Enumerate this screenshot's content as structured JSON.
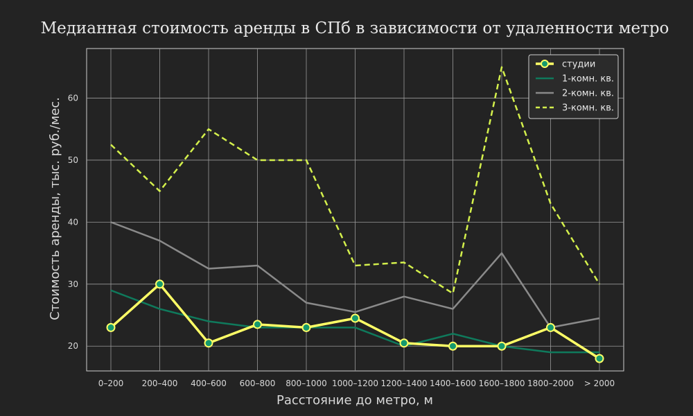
{
  "chart_data": {
    "type": "line",
    "title": "Медианная стоимость аренды в СПб в зависимости от удаленности метро",
    "xlabel": "Расстояние до метро, м",
    "ylabel": "Стоимость аренды, тыс. руб./мес.",
    "categories": [
      "0–200",
      "200–400",
      "400–600",
      "600–800",
      "800–1000",
      "1000–1200",
      "1200–1400",
      "1400–1600",
      "1600–1800",
      "1800–2000",
      "> 2000"
    ],
    "ylim": [
      16,
      68
    ],
    "yticks": [
      20,
      30,
      40,
      50,
      60
    ],
    "grid": true,
    "legend_position": "top-right",
    "series": [
      {
        "name": "студии",
        "color": "#ffff66",
        "style": "solid-markers",
        "values": [
          23,
          30,
          20.5,
          23.5,
          23,
          24.5,
          20.5,
          20,
          20,
          23,
          18
        ]
      },
      {
        "name": "1-комн. кв.",
        "color": "#0f7a5c",
        "style": "solid",
        "values": [
          29,
          26,
          24,
          23,
          23,
          23,
          20,
          22,
          20,
          19,
          19
        ]
      },
      {
        "name": "2-комн. кв.",
        "color": "#8a8a8a",
        "style": "solid",
        "values": [
          40,
          37,
          32.5,
          33,
          27,
          25.5,
          28,
          26,
          35,
          23,
          24.5
        ]
      },
      {
        "name": "3-комн. кв.",
        "color": "#d4f04c",
        "style": "dashed",
        "values": [
          52.5,
          45,
          55,
          50,
          50,
          33,
          33.5,
          28.5,
          65,
          43,
          30
        ]
      }
    ]
  }
}
